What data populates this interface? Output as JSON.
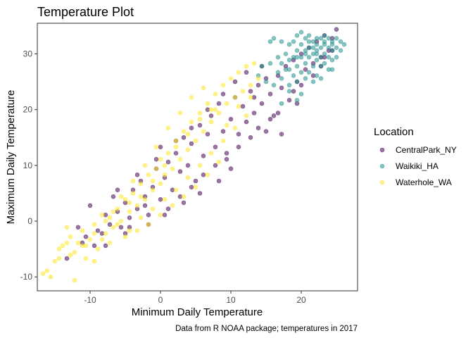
{
  "chart_data": {
    "type": "scatter",
    "title": "Temperature Plot",
    "xlabel": "Minimum Daily Temperature",
    "ylabel": "Maximum Daily Temperature",
    "caption": "Data from R NOAA package; temperatures in 2017",
    "xlim": [
      -17.5,
      28
    ],
    "ylim": [
      -12.5,
      35.5
    ],
    "x_ticks": [
      -10,
      0,
      10,
      20
    ],
    "y_ticks": [
      -10,
      0,
      10,
      20,
      30
    ],
    "grid": false,
    "point_opacity": 0.55,
    "legend": {
      "title": "Location",
      "position": "right"
    },
    "series": [
      {
        "name": "CentralPark_NY",
        "color": "#440154",
        "points": [
          [
            -13.3,
            -6.7
          ],
          [
            -11.7,
            -1.1
          ],
          [
            -11.1,
            -3.9
          ],
          [
            -10.0,
            2.8
          ],
          [
            -9.4,
            -4.4
          ],
          [
            -8.3,
            -2.2
          ],
          [
            -7.8,
            1.1
          ],
          [
            -7.2,
            -0.6
          ],
          [
            -6.7,
            4.4
          ],
          [
            -6.1,
            1.7
          ],
          [
            -5.6,
            -1.1
          ],
          [
            -5.0,
            3.3
          ],
          [
            -4.4,
            0.6
          ],
          [
            -3.9,
            5.6
          ],
          [
            -3.3,
            2.2
          ],
          [
            -2.8,
            7.2
          ],
          [
            -2.2,
            4.4
          ],
          [
            -1.7,
            1.1
          ],
          [
            -1.1,
            6.1
          ],
          [
            -0.6,
            9.4
          ],
          [
            0.0,
            3.9
          ],
          [
            0.0,
            13.3
          ],
          [
            0.6,
            7.8
          ],
          [
            1.1,
            10.6
          ],
          [
            1.7,
            5.6
          ],
          [
            2.2,
            12.2
          ],
          [
            2.8,
            8.9
          ],
          [
            3.3,
            15.0
          ],
          [
            3.9,
            10.0
          ],
          [
            4.4,
            13.9
          ],
          [
            5.0,
            7.2
          ],
          [
            5.6,
            17.2
          ],
          [
            6.1,
            11.7
          ],
          [
            6.7,
            15.6
          ],
          [
            7.2,
            18.9
          ],
          [
            7.8,
            13.3
          ],
          [
            8.3,
            21.1
          ],
          [
            8.9,
            16.1
          ],
          [
            9.4,
            12.2
          ],
          [
            10.0,
            18.3
          ],
          [
            10.6,
            22.2
          ],
          [
            11.1,
            15.6
          ],
          [
            11.7,
            20.6
          ],
          [
            12.2,
            17.8
          ],
          [
            12.8,
            23.3
          ],
          [
            13.3,
            19.4
          ],
          [
            13.9,
            24.4
          ],
          [
            14.4,
            21.1
          ],
          [
            15.0,
            25.6
          ],
          [
            15.6,
            22.8
          ],
          [
            16.1,
            18.9
          ],
          [
            16.7,
            26.1
          ],
          [
            17.2,
            23.9
          ],
          [
            17.8,
            27.8
          ],
          [
            18.3,
            21.7
          ],
          [
            18.9,
            28.9
          ],
          [
            19.4,
            25.0
          ],
          [
            20.0,
            30.0
          ],
          [
            20.6,
            27.2
          ],
          [
            21.1,
            31.1
          ],
          [
            21.7,
            28.3
          ],
          [
            22.2,
            32.2
          ],
          [
            22.8,
            29.4
          ],
          [
            23.3,
            33.3
          ],
          [
            23.9,
            30.6
          ],
          [
            24.4,
            32.8
          ],
          [
            25.0,
            34.4
          ],
          [
            -8.9,
            -1.7
          ],
          [
            -4.4,
            -1.1
          ],
          [
            -2.2,
            2.8
          ],
          [
            1.1,
            2.2
          ],
          [
            2.8,
            4.4
          ],
          [
            4.4,
            6.1
          ],
          [
            6.1,
            8.3
          ],
          [
            7.8,
            10.0
          ],
          [
            9.4,
            11.1
          ],
          [
            11.1,
            13.3
          ],
          [
            12.8,
            15.0
          ],
          [
            13.9,
            16.7
          ],
          [
            15.6,
            18.3
          ],
          [
            -6.1,
            5.6
          ],
          [
            -3.3,
            8.3
          ],
          [
            -0.6,
            11.1
          ],
          [
            2.2,
            14.4
          ],
          [
            4.4,
            16.7
          ],
          [
            6.7,
            20.0
          ],
          [
            8.9,
            22.8
          ],
          [
            10.6,
            25.0
          ],
          [
            12.2,
            26.7
          ],
          [
            14.4,
            27.8
          ],
          [
            -10.6,
            -2.8
          ],
          [
            -7.8,
            -4.4
          ],
          [
            -5.0,
            -2.2
          ],
          [
            -1.7,
            -0.6
          ],
          [
            0.6,
            1.1
          ],
          [
            3.3,
            3.3
          ],
          [
            5.6,
            5.0
          ],
          [
            8.3,
            7.2
          ],
          [
            10.0,
            9.4
          ],
          [
            16.7,
            19.4
          ],
          [
            17.2,
            15.6
          ],
          [
            18.9,
            23.3
          ],
          [
            20.0,
            24.4
          ],
          [
            21.7,
            26.1
          ],
          [
            22.8,
            27.8
          ],
          [
            23.3,
            29.4
          ],
          [
            24.4,
            30.6
          ],
          [
            19.4,
            21.1
          ],
          [
            15.0,
            16.1
          ],
          [
            13.3,
            22.2
          ]
        ]
      },
      {
        "name": "Waikiki_HA",
        "color": "#21908C",
        "points": [
          [
            13.9,
            26.1
          ],
          [
            14.4,
            27.8
          ],
          [
            15.0,
            25.0
          ],
          [
            15.6,
            28.3
          ],
          [
            16.1,
            24.4
          ],
          [
            16.7,
            26.7
          ],
          [
            16.7,
            29.4
          ],
          [
            17.2,
            25.6
          ],
          [
            17.2,
            32.2
          ],
          [
            17.8,
            27.2
          ],
          [
            17.8,
            30.0
          ],
          [
            18.3,
            24.4
          ],
          [
            18.3,
            28.9
          ],
          [
            18.3,
            31.7
          ],
          [
            18.9,
            26.1
          ],
          [
            18.9,
            29.4
          ],
          [
            18.9,
            32.2
          ],
          [
            19.4,
            25.0
          ],
          [
            19.4,
            27.8
          ],
          [
            19.4,
            30.6
          ],
          [
            20.0,
            22.8
          ],
          [
            20.0,
            26.7
          ],
          [
            20.0,
            29.4
          ],
          [
            20.0,
            31.7
          ],
          [
            20.6,
            25.6
          ],
          [
            20.6,
            28.3
          ],
          [
            20.6,
            30.6
          ],
          [
            20.6,
            32.8
          ],
          [
            21.1,
            26.7
          ],
          [
            21.1,
            29.4
          ],
          [
            21.1,
            31.1
          ],
          [
            21.1,
            33.3
          ],
          [
            21.7,
            27.8
          ],
          [
            21.7,
            30.0
          ],
          [
            21.7,
            32.2
          ],
          [
            22.2,
            26.1
          ],
          [
            22.2,
            28.9
          ],
          [
            22.2,
            30.6
          ],
          [
            22.2,
            32.8
          ],
          [
            22.8,
            27.8
          ],
          [
            22.8,
            29.4
          ],
          [
            22.8,
            31.1
          ],
          [
            22.8,
            32.8
          ],
          [
            23.3,
            28.3
          ],
          [
            23.3,
            30.0
          ],
          [
            23.3,
            31.7
          ],
          [
            23.3,
            33.3
          ],
          [
            23.9,
            27.2
          ],
          [
            23.9,
            29.4
          ],
          [
            23.9,
            31.1
          ],
          [
            23.9,
            32.8
          ],
          [
            24.4,
            28.9
          ],
          [
            24.4,
            30.6
          ],
          [
            24.4,
            32.2
          ],
          [
            25.0,
            29.4
          ],
          [
            25.0,
            31.1
          ],
          [
            25.0,
            32.8
          ],
          [
            25.6,
            30.6
          ],
          [
            25.6,
            32.2
          ],
          [
            26.1,
            31.7
          ],
          [
            16.1,
            32.8
          ],
          [
            15.6,
            32.2
          ],
          [
            19.4,
            21.7
          ],
          [
            18.3,
            23.3
          ],
          [
            17.2,
            21.1
          ],
          [
            21.7,
            25.0
          ],
          [
            22.8,
            25.6
          ],
          [
            24.4,
            27.2
          ],
          [
            19.4,
            33.3
          ],
          [
            20.0,
            33.9
          ],
          [
            21.1,
            32.2
          ],
          [
            22.2,
            31.7
          ],
          [
            23.3,
            32.2
          ],
          [
            24.4,
            31.7
          ],
          [
            22.2,
            30.0
          ],
          [
            21.7,
            31.1
          ],
          [
            20.6,
            30.0
          ],
          [
            19.4,
            29.4
          ],
          [
            18.3,
            27.2
          ],
          [
            17.2,
            28.3
          ]
        ]
      },
      {
        "name": "Waterhole_WA",
        "color": "#FDE725",
        "points": [
          [
            -16.7,
            -9.4
          ],
          [
            -16.1,
            -8.9
          ],
          [
            -15.6,
            -10.0
          ],
          [
            -14.4,
            -5.0
          ],
          [
            -14.4,
            -6.7
          ],
          [
            -13.9,
            -4.4
          ],
          [
            -13.3,
            -1.1
          ],
          [
            -12.8,
            -2.8
          ],
          [
            -12.2,
            -10.6
          ],
          [
            -12.2,
            -5.6
          ],
          [
            -11.7,
            -3.9
          ],
          [
            -11.1,
            -1.7
          ],
          [
            -10.6,
            -6.7
          ],
          [
            -10.0,
            -3.3
          ],
          [
            -9.4,
            -0.6
          ],
          [
            -8.9,
            -5.0
          ],
          [
            -8.3,
            1.1
          ],
          [
            -7.8,
            -2.2
          ],
          [
            -7.2,
            0.6
          ],
          [
            -6.7,
            -1.1
          ],
          [
            -6.1,
            2.2
          ],
          [
            -5.6,
            0.0
          ],
          [
            -5.0,
            3.9
          ],
          [
            -4.4,
            1.7
          ],
          [
            -3.9,
            5.0
          ],
          [
            -3.3,
            2.8
          ],
          [
            -2.8,
            6.7
          ],
          [
            -2.2,
            3.9
          ],
          [
            -1.7,
            8.3
          ],
          [
            -1.1,
            5.6
          ],
          [
            -0.6,
            9.4
          ],
          [
            0.0,
            6.7
          ],
          [
            0.0,
            11.1
          ],
          [
            0.6,
            8.3
          ],
          [
            1.1,
            12.2
          ],
          [
            1.7,
            9.4
          ],
          [
            2.2,
            14.4
          ],
          [
            2.8,
            11.1
          ],
          [
            3.3,
            16.1
          ],
          [
            3.9,
            12.8
          ],
          [
            4.4,
            17.8
          ],
          [
            5.0,
            14.4
          ],
          [
            5.6,
            19.4
          ],
          [
            6.1,
            16.1
          ],
          [
            6.7,
            21.1
          ],
          [
            7.2,
            17.8
          ],
          [
            7.8,
            22.8
          ],
          [
            8.3,
            19.4
          ],
          [
            8.9,
            24.4
          ],
          [
            9.4,
            21.1
          ],
          [
            10.0,
            25.6
          ],
          [
            10.6,
            22.2
          ],
          [
            11.1,
            26.7
          ],
          [
            11.7,
            23.3
          ],
          [
            12.2,
            27.8
          ],
          [
            12.8,
            24.4
          ],
          [
            13.3,
            28.3
          ],
          [
            13.9,
            25.6
          ],
          [
            -15.0,
            -7.2
          ],
          [
            -13.3,
            -3.9
          ],
          [
            -11.1,
            -4.4
          ],
          [
            -9.4,
            -2.2
          ],
          [
            -7.8,
            0.0
          ],
          [
            -6.1,
            -0.6
          ],
          [
            -4.4,
            -1.7
          ],
          [
            -2.8,
            0.6
          ],
          [
            -1.1,
            2.2
          ],
          [
            0.6,
            3.9
          ],
          [
            2.2,
            5.6
          ],
          [
            3.9,
            7.8
          ],
          [
            5.6,
            10.0
          ],
          [
            7.2,
            12.2
          ],
          [
            8.9,
            14.4
          ],
          [
            10.6,
            16.7
          ],
          [
            12.2,
            18.9
          ],
          [
            -7.2,
            -3.9
          ],
          [
            -5.0,
            -2.8
          ],
          [
            -3.3,
            -1.7
          ],
          [
            -1.7,
            -0.6
          ],
          [
            0.0,
            1.1
          ],
          [
            1.7,
            2.8
          ],
          [
            3.3,
            4.4
          ],
          [
            5.0,
            6.1
          ],
          [
            6.7,
            8.3
          ],
          [
            8.3,
            10.6
          ],
          [
            -5.6,
            4.4
          ],
          [
            -3.9,
            7.2
          ],
          [
            -2.2,
            10.0
          ],
          [
            -0.6,
            13.3
          ],
          [
            1.1,
            16.7
          ],
          [
            2.8,
            19.4
          ],
          [
            4.4,
            22.2
          ],
          [
            6.1,
            23.9
          ],
          [
            7.8,
            20.0
          ],
          [
            9.4,
            17.2
          ],
          [
            11.1,
            20.6
          ],
          [
            12.8,
            22.2
          ],
          [
            -9.4,
            -7.2
          ],
          [
            -8.3,
            -3.3
          ],
          [
            -6.7,
            1.7
          ],
          [
            -4.4,
            3.3
          ],
          [
            -2.8,
            4.4
          ],
          [
            -1.1,
            7.2
          ],
          [
            0.6,
            10.0
          ],
          [
            2.2,
            13.3
          ],
          [
            3.9,
            15.6
          ],
          [
            5.6,
            18.3
          ],
          [
            7.2,
            20.0
          ],
          [
            -12.8,
            -6.1
          ],
          [
            -10.6,
            -4.4
          ]
        ]
      }
    ]
  }
}
